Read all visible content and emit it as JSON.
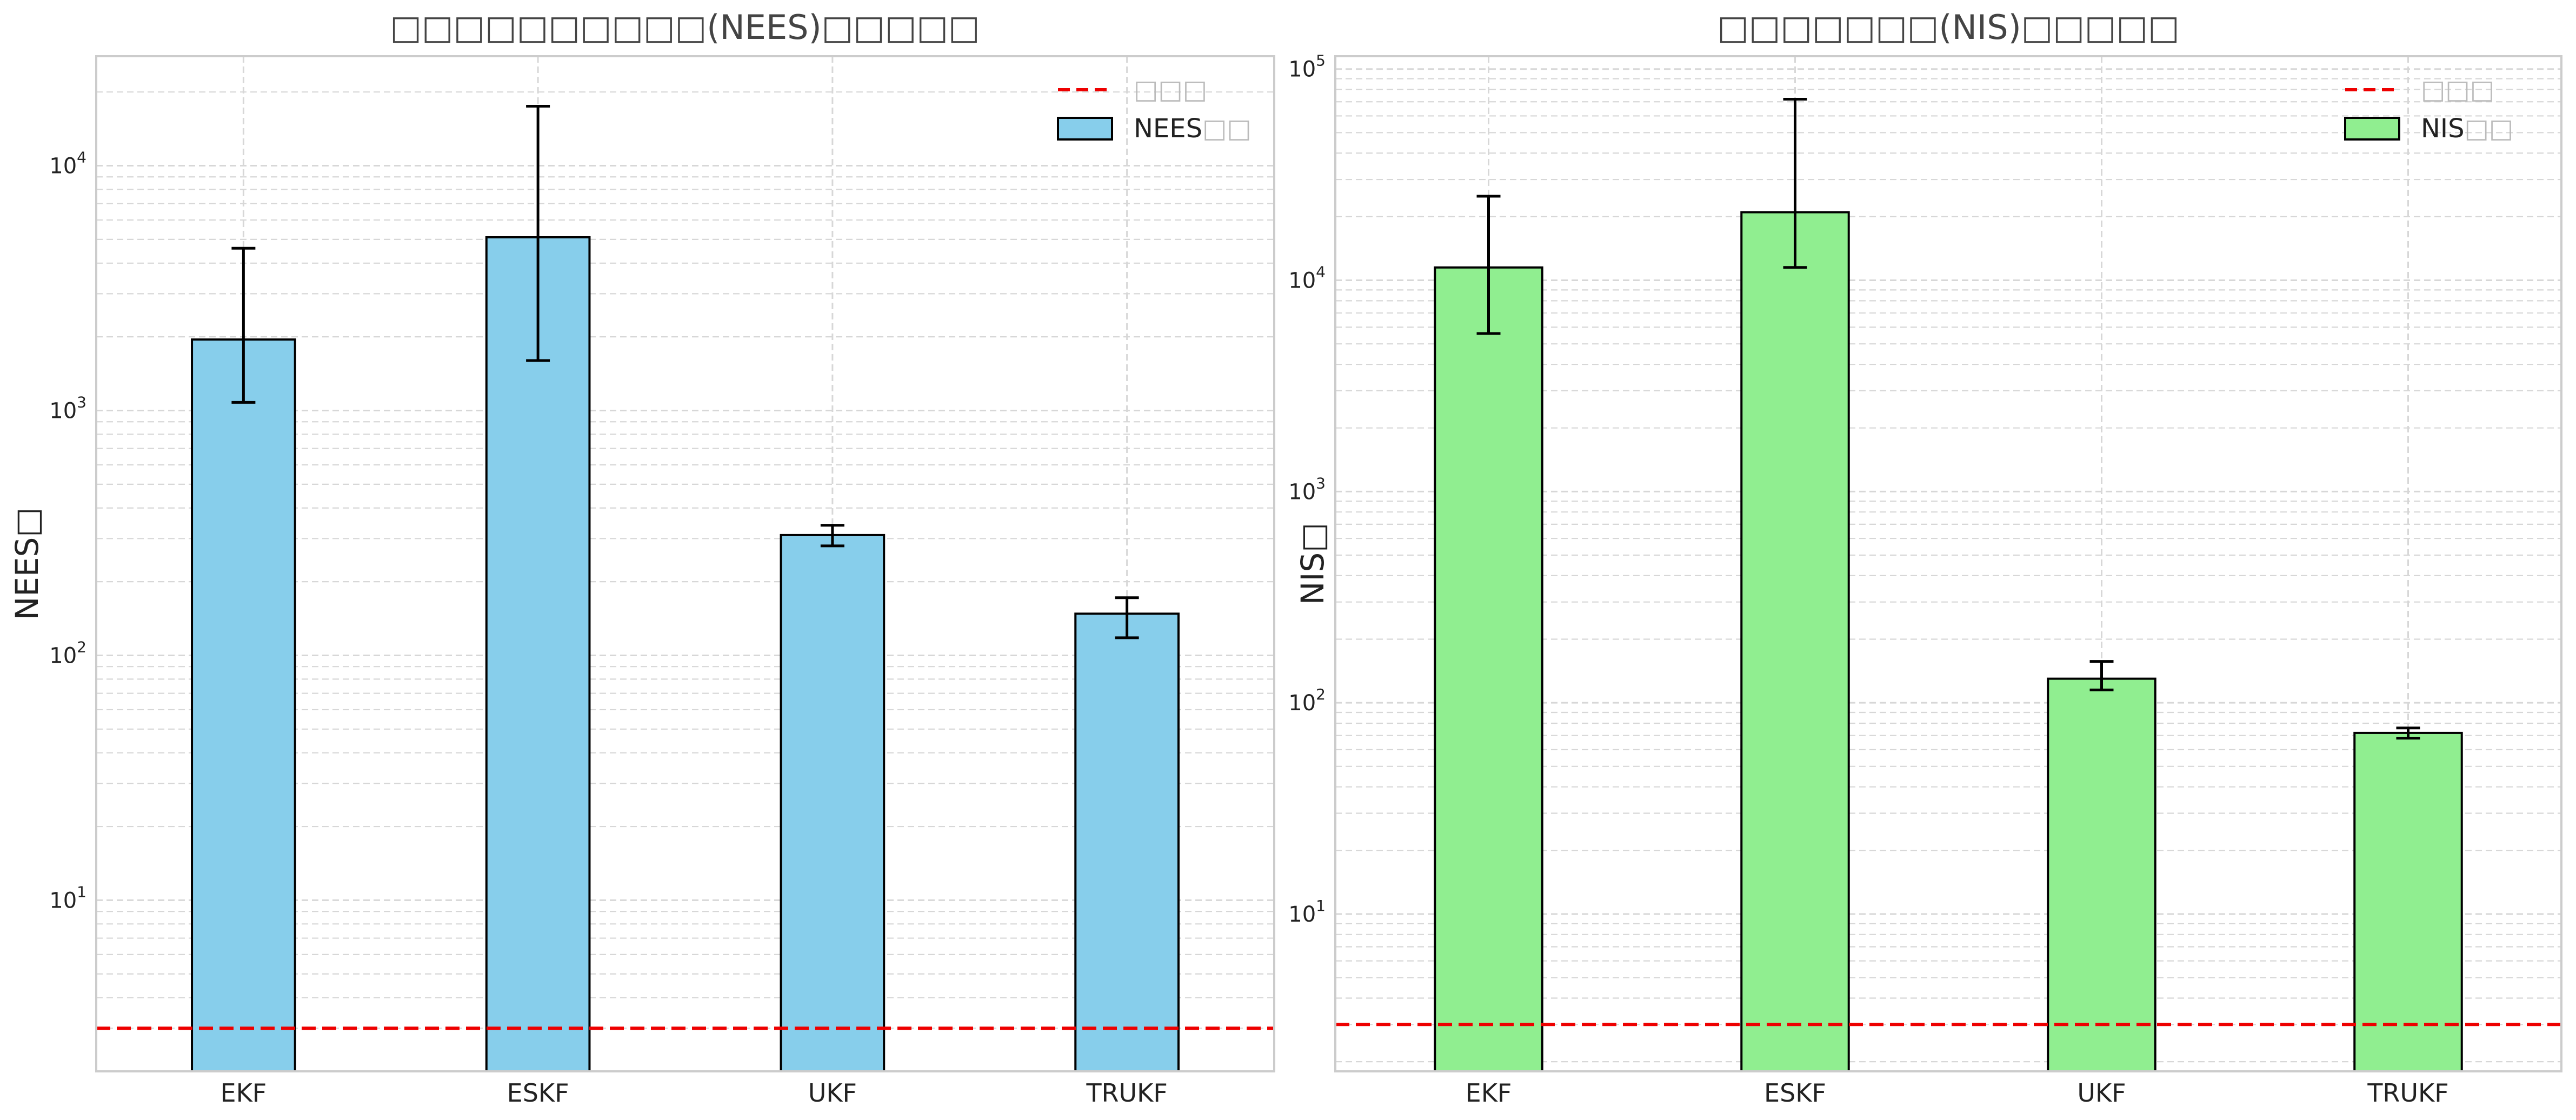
{
  "chart_data": [
    {
      "type": "bar",
      "title": "□□□□□□□□□□(NEES)□□□□□",
      "xlabel": "",
      "ylabel": "NEES□",
      "yscale": "log",
      "ylim": [
        2,
        28000
      ],
      "yticks": [
        10,
        100,
        1000,
        10000
      ],
      "ytick_labels": [
        {
          "base": "10",
          "exp": "1"
        },
        {
          "base": "10",
          "exp": "2"
        },
        {
          "base": "10",
          "exp": "3"
        },
        {
          "base": "10",
          "exp": "4"
        }
      ],
      "categories": [
        "EKF",
        "ESKF",
        "UKF",
        "TRUKF"
      ],
      "values": [
        1950,
        5100,
        310,
        148
      ],
      "error_low": [
        1080,
        1600,
        280,
        118
      ],
      "error_high": [
        4600,
        17500,
        340,
        172
      ],
      "reference_value": 3,
      "bar_color": "#87CEEB",
      "grid": true,
      "legend_position": "top-right",
      "legend": [
        {
          "label": "□□□",
          "kind": "line",
          "color": "#ee0000"
        },
        {
          "label_main": "NEES",
          "label_muted": "□□",
          "kind": "bar",
          "color": "#87CEEB"
        }
      ]
    },
    {
      "type": "bar",
      "title": "□□□□□□□(NIS)□□□□□",
      "xlabel": "",
      "ylabel": "NIS□",
      "yscale": "log",
      "ylim": [
        1.8,
        115000
      ],
      "yticks": [
        10,
        100,
        1000,
        10000,
        100000
      ],
      "ytick_labels": [
        {
          "base": "10",
          "exp": "1"
        },
        {
          "base": "10",
          "exp": "2"
        },
        {
          "base": "10",
          "exp": "3"
        },
        {
          "base": "10",
          "exp": "4"
        },
        {
          "base": "10",
          "exp": "5"
        }
      ],
      "categories": [
        "EKF",
        "ESKF",
        "UKF",
        "TRUKF"
      ],
      "values": [
        11500,
        21000,
        130,
        72
      ],
      "error_low": [
        5600,
        11500,
        115,
        68
      ],
      "error_high": [
        25000,
        72000,
        157,
        76
      ],
      "reference_value": 3,
      "bar_color": "#90EE90",
      "grid": true,
      "legend_position": "top-right",
      "legend": [
        {
          "label": "□□□",
          "kind": "line",
          "color": "#ee0000"
        },
        {
          "label_main": "NIS",
          "label_muted": "□□",
          "kind": "bar",
          "color": "#90EE90"
        }
      ]
    }
  ]
}
